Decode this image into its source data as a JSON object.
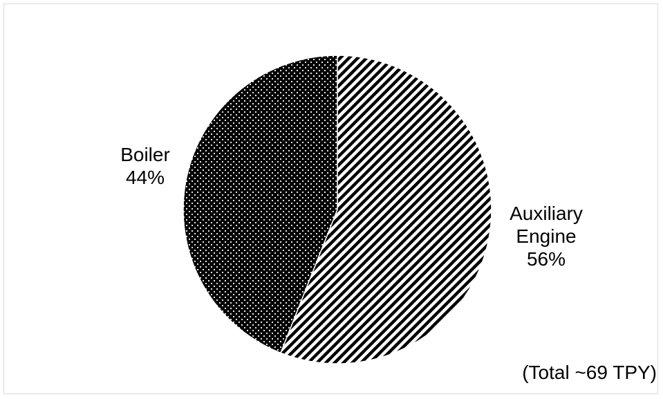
{
  "chart_data": {
    "type": "pie",
    "slices": [
      {
        "label": "Auxiliary Engine",
        "label_lines": [
          "Auxiliary",
          "Engine"
        ],
        "value": 56,
        "value_text": "56%",
        "pattern": "diagonal-stripes"
      },
      {
        "label": "Boiler",
        "label_lines": [
          "Boiler"
        ],
        "value": 44,
        "value_text": "44%",
        "pattern": "dots-on-black"
      }
    ],
    "annotation": "(Total ~69 TPY)",
    "start_angle_deg": 0,
    "direction": "clockwise",
    "colors": {
      "foreground": "#000000",
      "background": "#ffffff",
      "border": "#d9d9d9"
    }
  }
}
